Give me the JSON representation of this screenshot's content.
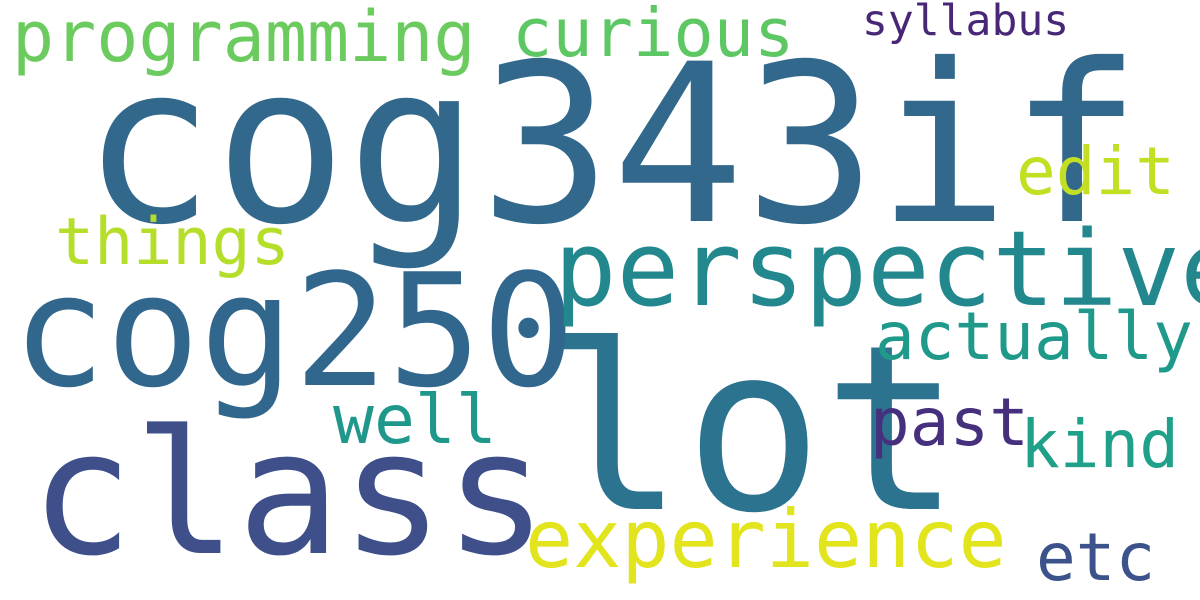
{
  "words": [
    {
      "text": "cog343if",
      "color": "#32688c"
    },
    {
      "text": "lot",
      "color": "#2c7390"
    },
    {
      "text": "class",
      "color": "#3e4f8a"
    },
    {
      "text": "cog250",
      "color": "#31668d"
    },
    {
      "text": "perspective",
      "color": "#23888e"
    },
    {
      "text": "experience",
      "color": "#e2e51d"
    },
    {
      "text": "programming",
      "color": "#6ccb5f"
    },
    {
      "text": "curious",
      "color": "#5dc863"
    },
    {
      "text": "things",
      "color": "#b5de2b"
    },
    {
      "text": "edit",
      "color": "#c2df23"
    },
    {
      "text": "actually",
      "color": "#1f9a8a"
    },
    {
      "text": "well",
      "color": "#1f988b"
    },
    {
      "text": "past",
      "color": "#46307e"
    },
    {
      "text": "kind",
      "color": "#1fa088"
    },
    {
      "text": "etc",
      "color": "#3b528b"
    },
    {
      "text": "syllabus",
      "color": "#482777"
    }
  ]
}
